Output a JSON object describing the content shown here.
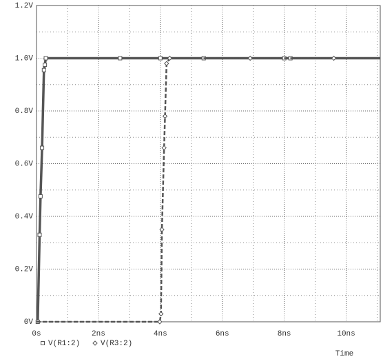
{
  "chart_data": {
    "type": "line",
    "x_label": "Time",
    "xlim": [
      0,
      11.1
    ],
    "ylim": [
      0,
      1.2
    ],
    "xticks": [
      {
        "value": 0,
        "label": "0s"
      },
      {
        "value": 2,
        "label": "2ns"
      },
      {
        "value": 4,
        "label": "4ns"
      },
      {
        "value": 6,
        "label": "6ns"
      },
      {
        "value": 8,
        "label": "8ns"
      },
      {
        "value": 10,
        "label": "10ns"
      }
    ],
    "yticks": [
      {
        "value": 0,
        "label": "0V"
      },
      {
        "value": 0.2,
        "label": "0.2V"
      },
      {
        "value": 0.4,
        "label": "0.4V"
      },
      {
        "value": 0.6,
        "label": "0.6V"
      },
      {
        "value": 0.8,
        "label": "0.8V"
      },
      {
        "value": 1.0,
        "label": "1.0V"
      },
      {
        "value": 1.2,
        "label": "1.2V"
      }
    ],
    "grid": true,
    "minor_grid": true,
    "legend": "bottom-left",
    "series": [
      {
        "name": "V(R1:2)",
        "color": "#555555",
        "style": "solid",
        "marker": "square",
        "x": [
          0,
          0.04,
          0.1,
          0.13,
          0.18,
          0.24,
          0.27,
          0.3,
          2.7,
          4.0,
          5.4,
          8.0,
          8.2,
          11.1
        ],
        "values": [
          0,
          0,
          0.33,
          0.476,
          0.66,
          0.955,
          0.975,
          1.0,
          1.0,
          1.0,
          1.0,
          1.0,
          1.0,
          1.0
        ]
      },
      {
        "name": "V(R3:2)",
        "color": "#555555",
        "style": "dashed",
        "marker": "diamond",
        "x": [
          0,
          3.98,
          4.02,
          4.05,
          4.12,
          4.15,
          4.2,
          4.3,
          6.9,
          9.6,
          11.1
        ],
        "values": [
          0,
          0,
          0.03,
          0.35,
          0.66,
          0.78,
          0.98,
          1.0,
          1.0,
          1.0,
          1.0
        ]
      }
    ]
  }
}
